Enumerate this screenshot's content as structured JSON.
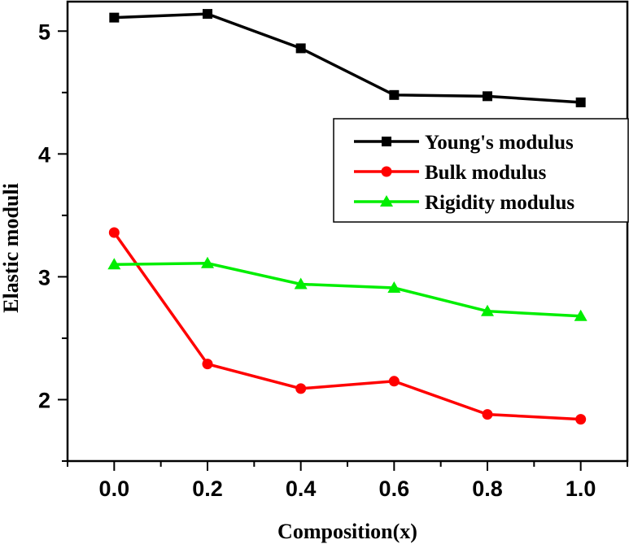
{
  "chart_data": {
    "type": "line",
    "title": "",
    "xlabel": "Composition(x)",
    "ylabel": "Elastic moduli",
    "xlim": [
      -0.1,
      1.1
    ],
    "ylim": [
      1.5,
      5.24
    ],
    "grid": false,
    "legend_position": "top-right",
    "x": [
      0.0,
      0.2,
      0.4,
      0.6,
      0.8,
      1.0
    ],
    "x_ticks": [
      "0.0",
      "0.2",
      "0.4",
      "0.6",
      "0.8",
      "1.0"
    ],
    "x_tick_values": [
      0.0,
      0.2,
      0.4,
      0.6,
      0.8,
      1.0
    ],
    "x_minor_ticks": [
      -0.1,
      0.1,
      0.3,
      0.5,
      0.7,
      0.9,
      1.1
    ],
    "y_ticks": [
      "2",
      "3",
      "4",
      "5"
    ],
    "y_tick_values": [
      2,
      3,
      4,
      5
    ],
    "y_minor_ticks": [
      1.5,
      2.5,
      3.5,
      4.5
    ],
    "series": [
      {
        "name": "Young's modulus",
        "color": "#000000",
        "marker": "square",
        "values": [
          5.11,
          5.14,
          4.86,
          4.48,
          4.47,
          4.42
        ]
      },
      {
        "name": "Bulk modulus",
        "color": "#ff0000",
        "marker": "circle",
        "values": [
          3.36,
          2.29,
          2.09,
          2.15,
          1.88,
          1.84
        ]
      },
      {
        "name": "Rigidity modulus",
        "color": "#00ee00",
        "marker": "triangle",
        "values": [
          3.1,
          3.11,
          2.94,
          2.91,
          2.72,
          2.68
        ]
      }
    ]
  }
}
